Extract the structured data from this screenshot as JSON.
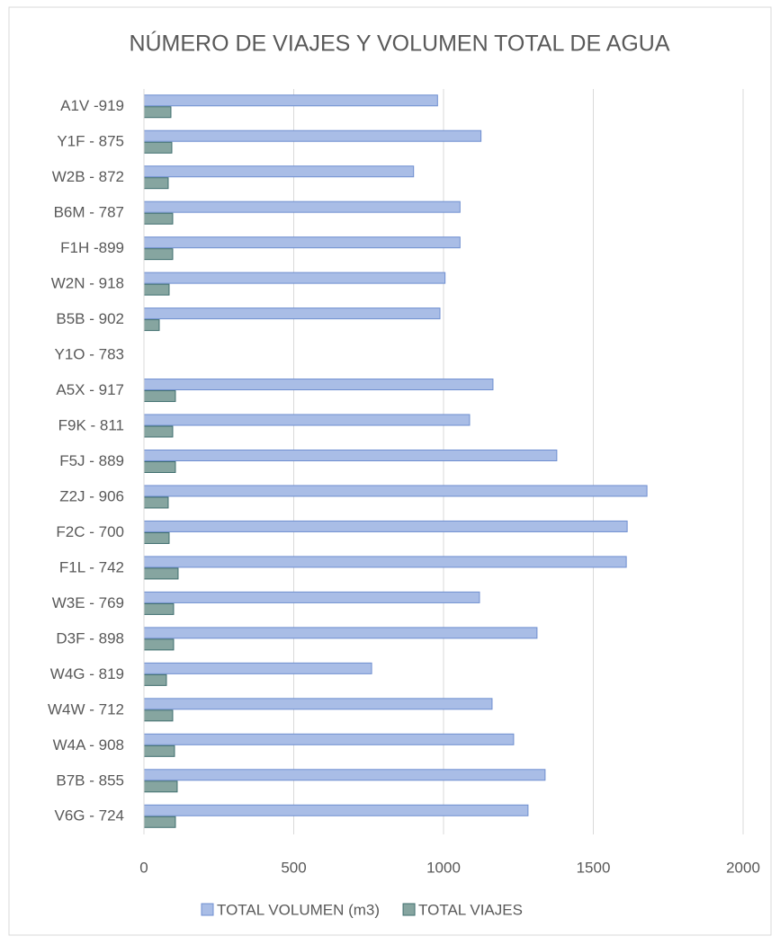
{
  "chart_data": {
    "type": "hbar",
    "title": "NÚMERO DE VIAJES Y VOLUMEN TOTAL DE AGUA",
    "categories": [
      "A1V -919",
      "Y1F - 875",
      "W2B - 872",
      "B6M - 787",
      "F1H -899",
      "W2N - 918",
      "B5B - 902",
      "Y1O - 783",
      "A5X - 917",
      "F9K - 811",
      "F5J - 889",
      "Z2J - 906",
      "F2C - 700",
      "F1L - 742",
      "W3E - 769",
      "D3F - 898",
      "W4G - 819",
      "W4W - 712",
      "W4A - 908",
      "B7B - 855",
      "V6G - 724"
    ],
    "series": [
      {
        "name": "TOTAL VOLUMEN (m3)",
        "color": "#a9bde6",
        "stroke": "#6f8fd0",
        "values": [
          980,
          1125,
          900,
          1055,
          1055,
          1005,
          988,
          null,
          1165,
          1087,
          1378,
          1679,
          1613,
          1610,
          1120,
          1312,
          760,
          1162,
          1234,
          1339,
          1282
        ]
      },
      {
        "name": "TOTAL VIAJES",
        "color": "#86a5a0",
        "stroke": "#3f6e6e",
        "values": [
          90,
          93,
          81,
          96,
          96,
          84,
          51,
          null,
          105,
          96,
          105,
          81,
          84,
          114,
          99,
          99,
          75,
          96,
          102,
          111,
          105
        ]
      }
    ],
    "xlim": [
      0,
      2000
    ],
    "xticks": [
      0,
      500,
      1000,
      1500,
      2000
    ],
    "grid": true,
    "legend": "bottom"
  }
}
